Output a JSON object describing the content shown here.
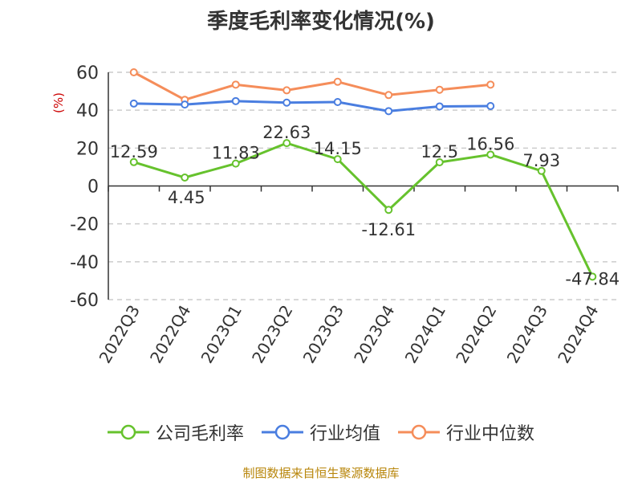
{
  "chart_data": {
    "type": "line",
    "title": "季度毛利率变化情况(%)",
    "ylabel": "(%)",
    "ylim": [
      -60,
      60
    ],
    "yticks": [
      60,
      40,
      20,
      0,
      -20,
      -40,
      -60
    ],
    "categories": [
      "2022Q3",
      "2022Q4",
      "2023Q1",
      "2023Q2",
      "2023Q3",
      "2023Q4",
      "2024Q1",
      "2024Q2",
      "2024Q3",
      "2024Q4"
    ],
    "grid": true,
    "legend_position": "bottom",
    "series": [
      {
        "name": "公司毛利率",
        "color": "#66c22d",
        "values": [
          12.59,
          4.45,
          11.83,
          22.63,
          14.15,
          -12.61,
          12.5,
          16.56,
          7.93,
          -47.84
        ],
        "labels": [
          "12.59",
          "4.45",
          "11.83",
          "22.63",
          "14.15",
          "-12.61",
          "12.5",
          "16.56",
          "7.93",
          "-47.84"
        ]
      },
      {
        "name": "行业均值",
        "color": "#4a7ee0",
        "values": [
          43.5,
          43.0,
          44.8,
          44.0,
          44.3,
          39.5,
          42.0,
          42.2,
          null,
          null
        ]
      },
      {
        "name": "行业中位数",
        "color": "#f58d5a",
        "values": [
          60.0,
          45.5,
          53.5,
          50.5,
          55.0,
          48.0,
          50.8,
          53.5,
          null,
          null
        ]
      }
    ]
  },
  "source": "制图数据来自恒生聚源数据库"
}
